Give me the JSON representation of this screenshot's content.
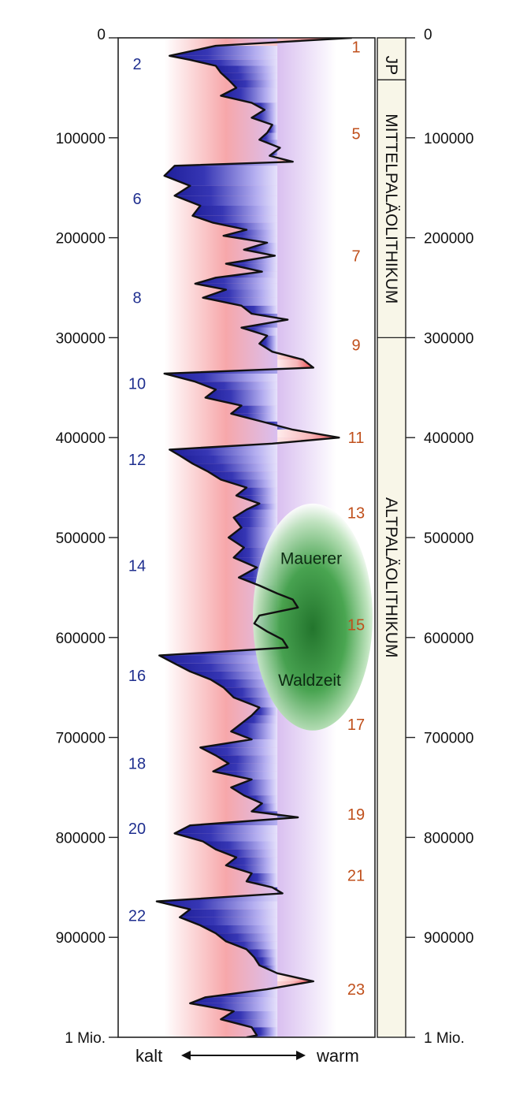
{
  "chart_data": {
    "type": "area",
    "orientation": "vertical-time",
    "y_axis": {
      "range": [
        0,
        1000000
      ],
      "ticks": [
        0,
        100000,
        200000,
        300000,
        400000,
        500000,
        600000,
        700000,
        800000,
        900000,
        1000000
      ],
      "tick_labels": [
        "0",
        "100000",
        "200000",
        "300000",
        "400000",
        "500000",
        "600000",
        "700000",
        "800000",
        "900000",
        "1 Mio."
      ]
    },
    "x_axis": {
      "left_label": "kalt",
      "right_label": "warm",
      "range": [
        0,
        100
      ]
    },
    "colors": {
      "cold": "#2a2aa8",
      "warm": "#e8434a",
      "warm_band": "#ffd3d3",
      "cold_band": "#c9c3f2",
      "oval": "#1f8f2a",
      "blue_text": "#1f2f8f",
      "red_text": "#c0501c"
    },
    "series": [
      {
        "values": [
          [
            0,
            91
          ],
          [
            8000,
            38
          ],
          [
            18000,
            20
          ],
          [
            22000,
            28
          ],
          [
            28000,
            38
          ],
          [
            35000,
            40
          ],
          [
            42000,
            43
          ],
          [
            50000,
            46
          ],
          [
            58000,
            40
          ],
          [
            65000,
            52
          ],
          [
            72000,
            57
          ],
          [
            80000,
            52
          ],
          [
            87000,
            60
          ],
          [
            95000,
            58
          ],
          [
            102000,
            55
          ],
          [
            110000,
            63
          ],
          [
            118000,
            59
          ],
          [
            124000,
            68
          ],
          [
            128000,
            22
          ],
          [
            138000,
            18
          ],
          [
            148000,
            28
          ],
          [
            158000,
            22
          ],
          [
            168000,
            32
          ],
          [
            178000,
            29
          ],
          [
            185000,
            37
          ],
          [
            192000,
            50
          ],
          [
            198000,
            41
          ],
          [
            205000,
            58
          ],
          [
            212000,
            49
          ],
          [
            218000,
            61
          ],
          [
            226000,
            42
          ],
          [
            234000,
            56
          ],
          [
            240000,
            38
          ],
          [
            246000,
            30
          ],
          [
            252000,
            42
          ],
          [
            260000,
            33
          ],
          [
            268000,
            48
          ],
          [
            276000,
            52
          ],
          [
            282000,
            66
          ],
          [
            290000,
            48
          ],
          [
            298000,
            58
          ],
          [
            306000,
            55
          ],
          [
            314000,
            60
          ],
          [
            322000,
            72
          ],
          [
            330000,
            76
          ],
          [
            336000,
            18
          ],
          [
            344000,
            30
          ],
          [
            352000,
            38
          ],
          [
            360000,
            34
          ],
          [
            368000,
            48
          ],
          [
            376000,
            44
          ],
          [
            384000,
            56
          ],
          [
            392000,
            68
          ],
          [
            400000,
            86
          ],
          [
            406000,
            60
          ],
          [
            412000,
            20
          ],
          [
            418000,
            24
          ],
          [
            426000,
            29
          ],
          [
            434000,
            35
          ],
          [
            442000,
            40
          ],
          [
            450000,
            50
          ],
          [
            458000,
            46
          ],
          [
            466000,
            55
          ],
          [
            472000,
            50
          ],
          [
            480000,
            45
          ],
          [
            490000,
            48
          ],
          [
            500000,
            43
          ],
          [
            510000,
            49
          ],
          [
            520000,
            45
          ],
          [
            530000,
            54
          ],
          [
            540000,
            47
          ],
          [
            548000,
            55
          ],
          [
            556000,
            62
          ],
          [
            562000,
            68
          ],
          [
            570000,
            70
          ],
          [
            578000,
            55
          ],
          [
            586000,
            53
          ],
          [
            594000,
            58
          ],
          [
            602000,
            64
          ],
          [
            610000,
            66
          ],
          [
            618000,
            16
          ],
          [
            626000,
            22
          ],
          [
            634000,
            28
          ],
          [
            642000,
            36
          ],
          [
            650000,
            41
          ],
          [
            660000,
            45
          ],
          [
            670000,
            55
          ],
          [
            678000,
            52
          ],
          [
            686000,
            48
          ],
          [
            694000,
            44
          ],
          [
            702000,
            52
          ],
          [
            710000,
            32
          ],
          [
            718000,
            38
          ],
          [
            726000,
            43
          ],
          [
            734000,
            37
          ],
          [
            742000,
            52
          ],
          [
            750000,
            44
          ],
          [
            758000,
            49
          ],
          [
            766000,
            56
          ],
          [
            774000,
            52
          ],
          [
            780000,
            70
          ],
          [
            788000,
            28
          ],
          [
            796000,
            22
          ],
          [
            804000,
            33
          ],
          [
            812000,
            38
          ],
          [
            820000,
            46
          ],
          [
            828000,
            42
          ],
          [
            836000,
            52
          ],
          [
            844000,
            50
          ],
          [
            850000,
            60
          ],
          [
            856000,
            64
          ],
          [
            864000,
            15
          ],
          [
            872000,
            28
          ],
          [
            880000,
            24
          ],
          [
            888000,
            32
          ],
          [
            896000,
            38
          ],
          [
            904000,
            42
          ],
          [
            912000,
            50
          ],
          [
            920000,
            53
          ],
          [
            928000,
            55
          ],
          [
            936000,
            62
          ],
          [
            944000,
            76
          ],
          [
            952000,
            58
          ],
          [
            960000,
            34
          ],
          [
            966000,
            28
          ],
          [
            974000,
            45
          ],
          [
            982000,
            40
          ],
          [
            990000,
            52
          ],
          [
            998000,
            54
          ],
          [
            1000000,
            50
          ]
        ]
      }
    ],
    "stage_labels_cold": [
      {
        "text": "2",
        "y": 26000
      },
      {
        "text": "6",
        "y": 161000
      },
      {
        "text": "8",
        "y": 260000
      },
      {
        "text": "10",
        "y": 346000
      },
      {
        "text": "12",
        "y": 422000
      },
      {
        "text": "14",
        "y": 528000
      },
      {
        "text": "16",
        "y": 638000
      },
      {
        "text": "18",
        "y": 726000
      },
      {
        "text": "20",
        "y": 791000
      },
      {
        "text": "22",
        "y": 878000
      }
    ],
    "stage_labels_warm": [
      {
        "text": "1",
        "y": 9000
      },
      {
        "text": "5",
        "y": 96000
      },
      {
        "text": "7",
        "y": 218000
      },
      {
        "text": "9",
        "y": 307000
      },
      {
        "text": "11",
        "y": 400000
      },
      {
        "text": "13",
        "y": 475000
      },
      {
        "text": "15",
        "y": 587000
      },
      {
        "text": "17",
        "y": 687000
      },
      {
        "text": "19",
        "y": 777000
      },
      {
        "text": "21",
        "y": 838000
      },
      {
        "text": "23",
        "y": 952000
      }
    ],
    "periods": [
      {
        "text": "JP",
        "start": 13000,
        "end": 42000
      },
      {
        "text": "MITTELPALÄOLITHIKUM",
        "start": 42000,
        "end": 300000
      },
      {
        "text": "ALTPALÄOLITHIKUM",
        "start": 300000,
        "end": 1000000
      }
    ],
    "annotation": {
      "lines": [
        "Mauerer",
        "Waldzeit"
      ],
      "center_y": 574000,
      "span": [
        466000,
        693000
      ]
    }
  }
}
